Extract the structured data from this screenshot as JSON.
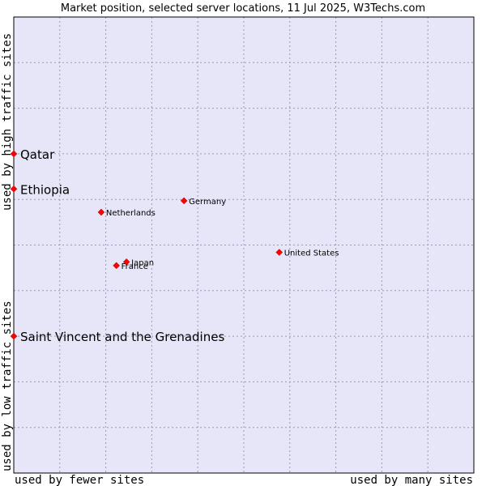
{
  "chart_data": {
    "type": "scatter",
    "title": "Market position, selected server locations, 11 Jul 2025, W3Techs.com",
    "xlabel_left": "used by fewer sites",
    "xlabel_right": "used by many sites",
    "ylabel_bottom": "used by low traffic sites",
    "ylabel_top": "used by high traffic sites",
    "xlim": [
      0,
      10
    ],
    "ylim": [
      0,
      10
    ],
    "grid": true,
    "colors": {
      "plot_background": "#e6e6f8",
      "grid": "#9a9ab8",
      "marker": "#ff0000",
      "border": "#000000"
    },
    "points": [
      {
        "name": "Qatar",
        "x": 0.0,
        "y": 7.0,
        "emphasis": true
      },
      {
        "name": "Ethiopia",
        "x": 0.0,
        "y": 6.23,
        "emphasis": true
      },
      {
        "name": "Saint Vincent and the Grenadines",
        "x": 0.0,
        "y": 3.0,
        "emphasis": true
      },
      {
        "name": "Germany",
        "x": 3.7,
        "y": 5.97,
        "emphasis": false
      },
      {
        "name": "Netherlands",
        "x": 1.9,
        "y": 5.72,
        "emphasis": false
      },
      {
        "name": "United States",
        "x": 5.77,
        "y": 4.84,
        "emphasis": false
      },
      {
        "name": "Japan",
        "x": 2.45,
        "y": 4.63,
        "emphasis": false
      },
      {
        "name": "France",
        "x": 2.23,
        "y": 4.55,
        "emphasis": false
      }
    ]
  }
}
